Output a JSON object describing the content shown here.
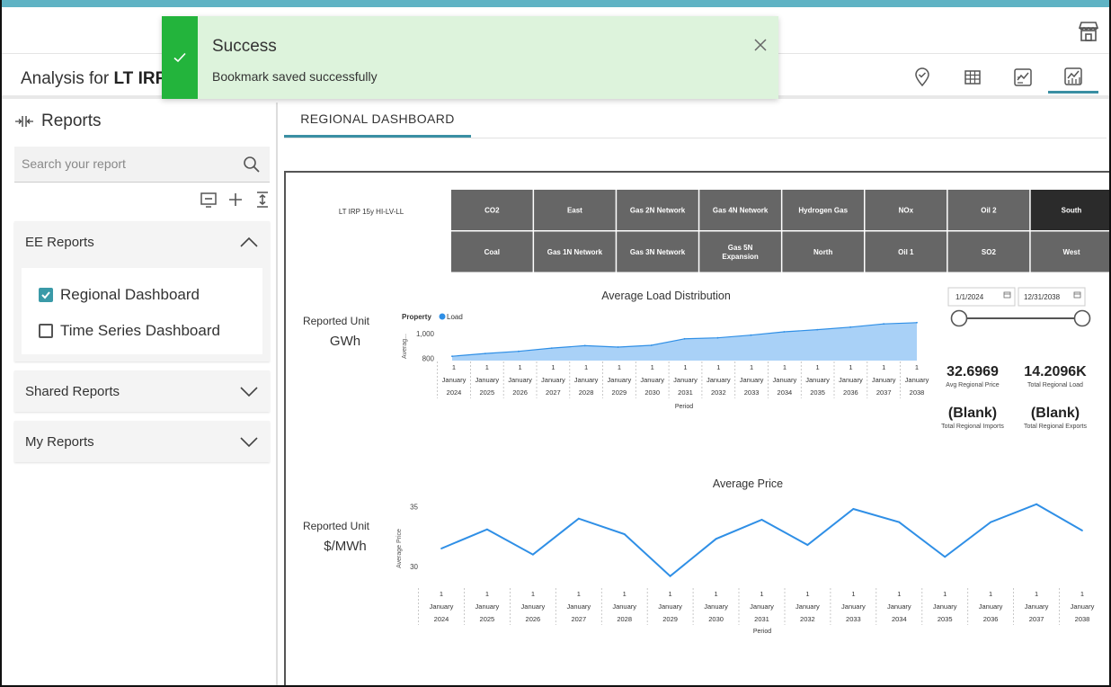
{
  "header": {
    "analysis_prefix": "Analysis for ",
    "analysis_name": "LT IRP"
  },
  "toast": {
    "title": "Success",
    "message": "Bookmark saved successfully"
  },
  "sidebar": {
    "title": "Reports",
    "search_placeholder": "Search your report",
    "sections": [
      {
        "label": "EE Reports",
        "expanded": true,
        "items": [
          {
            "label": "Regional Dashboard",
            "checked": true
          },
          {
            "label": "Time Series Dashboard",
            "checked": false
          }
        ]
      },
      {
        "label": "Shared Reports",
        "expanded": false
      },
      {
        "label": "My Reports",
        "expanded": false
      }
    ]
  },
  "tabs": {
    "active": "REGIONAL DASHBOARD"
  },
  "dashboard": {
    "scenario_label": "LT IRP 15y HI-LV-LL",
    "slicer_buttons": [
      [
        "CO2",
        "East",
        "Gas 2N Network",
        "Gas 4N Network",
        "Hydrogen Gas",
        "NOx",
        "Oil 2",
        "South"
      ],
      [
        "Coal",
        "Gas 1N Network",
        "Gas 3N Network",
        "Gas 5N Expansion",
        "North",
        "Oil 1",
        "SO2",
        "West"
      ]
    ],
    "selected_slicer": "South",
    "date_start": "1/1/2024",
    "date_end": "12/31/2038",
    "cards": [
      {
        "value": "32.6969",
        "label": "Avg Regional Price"
      },
      {
        "value": "14.2096K",
        "label": "Total Regional Load"
      },
      {
        "value": "(Blank)",
        "label": "Total Regional Imports"
      },
      {
        "value": "(Blank)",
        "label": "Total Regional Exports"
      }
    ],
    "load_unit_label": "Reported Unit",
    "load_unit": "GWh",
    "price_unit_label": "Reported Unit",
    "price_unit": "$/MWh"
  },
  "chart_data": [
    {
      "type": "area",
      "title": "Average Load Distribution",
      "legend_title": "Property",
      "series": [
        {
          "name": "Load",
          "values": [
            815,
            838,
            856,
            882,
            902,
            890,
            905,
            958,
            966,
            988,
            1015,
            1033,
            1053,
            1080,
            1090
          ]
        }
      ],
      "categories": [
        "2024",
        "2025",
        "2026",
        "2027",
        "2028",
        "2029",
        "2030",
        "2031",
        "2032",
        "2033",
        "2034",
        "2035",
        "2036",
        "2037",
        "2038"
      ],
      "tick_prefix": [
        "1",
        "January"
      ],
      "xlabel": "Period",
      "ylabel": "Averag...",
      "yticks": [
        800,
        1000
      ],
      "ytick_labels": [
        "800",
        "1,000"
      ],
      "ylim": [
        780,
        1140
      ],
      "color": "#2f8fe6"
    },
    {
      "type": "line",
      "title": "Average Price",
      "series": [
        {
          "values": [
            31.5,
            33.1,
            31.0,
            34.0,
            32.7,
            29.2,
            32.3,
            33.9,
            31.8,
            34.8,
            33.7,
            30.8,
            33.7,
            35.2,
            33.0
          ]
        }
      ],
      "categories": [
        "2024",
        "2025",
        "2026",
        "2027",
        "2028",
        "2029",
        "2030",
        "2031",
        "2032",
        "2033",
        "2034",
        "2035",
        "2036",
        "2037",
        "2038"
      ],
      "tick_prefix": [
        "1",
        "January"
      ],
      "xlabel": "Period",
      "ylabel": "Average Price",
      "yticks": [
        30,
        35
      ],
      "ylim": [
        28.5,
        36
      ],
      "color": "#2f8fe6"
    }
  ],
  "colors": {
    "accent": "#3a8fa3",
    "success": "#23b43c",
    "slicer_bg": "#666666",
    "slicer_selected": "#2b2b2b"
  }
}
